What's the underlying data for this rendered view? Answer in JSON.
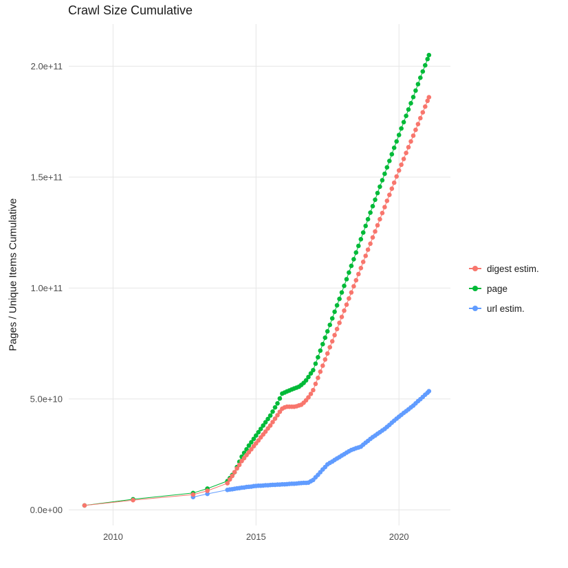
{
  "chart_data": {
    "type": "line",
    "markers": true,
    "title": "Crawl Size Cumulative",
    "xlabel": "",
    "ylabel": "Pages / Unique Items Cumulative",
    "grid": "major-only",
    "grid_color": "#e5e5e5",
    "background": "#ffffff",
    "legend_position": "right",
    "xlim": [
      2008.45,
      2021.8
    ],
    "ylim_raw": [
      -7000000000,
      219000000000
    ],
    "y_scale": 1000000000,
    "y_unit_note": "series point y-values are in billions (1e9) of pages/items",
    "x_ticks": [
      {
        "value": 2010,
        "label": "2010"
      },
      {
        "value": 2015,
        "label": "2015"
      },
      {
        "value": 2020,
        "label": "2020"
      }
    ],
    "y_ticks": [
      {
        "value": 0,
        "label": "0.0e+00"
      },
      {
        "value": 50000000000,
        "label": "5.0e+10"
      },
      {
        "value": 100000000000,
        "label": "1.0e+11"
      },
      {
        "value": 150000000000,
        "label": "1.5e+11"
      },
      {
        "value": 200000000000,
        "label": "2.0e+11"
      }
    ],
    "series": [
      {
        "name": "digest estim.",
        "color": "#F8766D",
        "points": [
          [
            2009.0,
            2.0
          ],
          [
            2010.7,
            4.4
          ],
          [
            2012.8,
            6.9
          ],
          [
            2013.3,
            8.6
          ],
          [
            2014.0,
            12.0
          ],
          [
            2014.083,
            13.7
          ],
          [
            2014.167,
            15.3
          ],
          [
            2014.25,
            17.0
          ],
          [
            2014.333,
            18.7
          ],
          [
            2014.417,
            20.3
          ],
          [
            2014.5,
            22.0
          ],
          [
            2014.583,
            23.3
          ],
          [
            2014.667,
            24.7
          ],
          [
            2014.75,
            26.0
          ],
          [
            2014.833,
            27.3
          ],
          [
            2014.917,
            28.7
          ],
          [
            2015.0,
            30.0
          ],
          [
            2015.083,
            31.3
          ],
          [
            2015.167,
            32.7
          ],
          [
            2015.25,
            34.0
          ],
          [
            2015.333,
            35.3
          ],
          [
            2015.417,
            36.7
          ],
          [
            2015.5,
            38.0
          ],
          [
            2015.583,
            39.6
          ],
          [
            2015.667,
            41.1
          ],
          [
            2015.75,
            42.7
          ],
          [
            2015.833,
            44.2
          ],
          [
            2015.917,
            45.6
          ],
          [
            2016.0,
            46.2
          ],
          [
            2016.083,
            46.5
          ],
          [
            2016.167,
            46.5
          ],
          [
            2016.25,
            46.5
          ],
          [
            2016.333,
            46.5
          ],
          [
            2016.417,
            46.7
          ],
          [
            2016.5,
            47.1
          ],
          [
            2016.583,
            47.4
          ],
          [
            2016.667,
            48.3
          ],
          [
            2016.75,
            49.4
          ],
          [
            2016.833,
            50.7
          ],
          [
            2016.917,
            52.3
          ],
          [
            2017.0,
            54.0
          ],
          [
            2017.083,
            56.8
          ],
          [
            2017.167,
            59.5
          ],
          [
            2017.25,
            62.3
          ],
          [
            2017.333,
            65.0
          ],
          [
            2017.417,
            67.8
          ],
          [
            2017.5,
            70.5
          ],
          [
            2017.583,
            73.3
          ],
          [
            2017.667,
            76.0
          ],
          [
            2017.75,
            78.8
          ],
          [
            2017.833,
            81.5
          ],
          [
            2017.917,
            84.3
          ],
          [
            2018.0,
            87.0
          ],
          [
            2018.083,
            89.8
          ],
          [
            2018.167,
            92.5
          ],
          [
            2018.25,
            95.3
          ],
          [
            2018.333,
            98.0
          ],
          [
            2018.417,
            100.8
          ],
          [
            2018.5,
            103.5
          ],
          [
            2018.583,
            106.3
          ],
          [
            2018.667,
            109.0
          ],
          [
            2018.75,
            111.8
          ],
          [
            2018.833,
            114.5
          ],
          [
            2018.917,
            117.3
          ],
          [
            2019.0,
            120.0
          ],
          [
            2019.083,
            122.8
          ],
          [
            2019.167,
            125.5
          ],
          [
            2019.25,
            128.3
          ],
          [
            2019.333,
            131.0
          ],
          [
            2019.417,
            133.8
          ],
          [
            2019.5,
            136.5
          ],
          [
            2019.583,
            139.3
          ],
          [
            2019.667,
            142.0
          ],
          [
            2019.75,
            144.8
          ],
          [
            2019.833,
            147.5
          ],
          [
            2019.917,
            150.3
          ],
          [
            2020.0,
            153.0
          ],
          [
            2020.083,
            155.6
          ],
          [
            2020.167,
            158.2
          ],
          [
            2020.25,
            160.9
          ],
          [
            2020.333,
            163.5
          ],
          [
            2020.417,
            166.1
          ],
          [
            2020.5,
            168.7
          ],
          [
            2020.583,
            171.3
          ],
          [
            2020.667,
            173.9
          ],
          [
            2020.75,
            176.6
          ],
          [
            2020.833,
            179.2
          ],
          [
            2020.917,
            181.8
          ],
          [
            2021.0,
            184.4
          ],
          [
            2021.05,
            186.0
          ]
        ]
      },
      {
        "name": "page",
        "color": "#00BA38",
        "points": [
          [
            2009.0,
            2.0
          ],
          [
            2010.7,
            4.8
          ],
          [
            2012.8,
            7.6
          ],
          [
            2013.3,
            9.6
          ],
          [
            2014.0,
            13.0
          ],
          [
            2014.083,
            14.3
          ],
          [
            2014.167,
            15.7
          ],
          [
            2014.25,
            17.0
          ],
          [
            2014.333,
            19.3
          ],
          [
            2014.417,
            21.7
          ],
          [
            2014.5,
            24.0
          ],
          [
            2014.583,
            25.7
          ],
          [
            2014.667,
            27.3
          ],
          [
            2014.75,
            29.0
          ],
          [
            2014.833,
            30.5
          ],
          [
            2014.917,
            32.0
          ],
          [
            2015.0,
            33.5
          ],
          [
            2015.083,
            35.0
          ],
          [
            2015.167,
            36.5
          ],
          [
            2015.25,
            38.0
          ],
          [
            2015.333,
            39.5
          ],
          [
            2015.417,
            41.0
          ],
          [
            2015.5,
            42.5
          ],
          [
            2015.583,
            44.3
          ],
          [
            2015.667,
            46.2
          ],
          [
            2015.75,
            48.0
          ],
          [
            2015.833,
            50.2
          ],
          [
            2015.917,
            52.4
          ],
          [
            2016.0,
            52.9
          ],
          [
            2016.083,
            53.4
          ],
          [
            2016.167,
            53.8
          ],
          [
            2016.25,
            54.3
          ],
          [
            2016.333,
            54.7
          ],
          [
            2016.417,
            55.1
          ],
          [
            2016.5,
            55.5
          ],
          [
            2016.583,
            56.3
          ],
          [
            2016.667,
            57.2
          ],
          [
            2016.75,
            58.4
          ],
          [
            2016.833,
            59.9
          ],
          [
            2016.917,
            61.5
          ],
          [
            2017.0,
            63.0
          ],
          [
            2017.083,
            65.9
          ],
          [
            2017.167,
            68.8
          ],
          [
            2017.25,
            71.8
          ],
          [
            2017.333,
            74.7
          ],
          [
            2017.417,
            77.6
          ],
          [
            2017.5,
            80.5
          ],
          [
            2017.583,
            83.4
          ],
          [
            2017.667,
            86.3
          ],
          [
            2017.75,
            89.3
          ],
          [
            2017.833,
            92.2
          ],
          [
            2017.917,
            95.1
          ],
          [
            2018.0,
            98.0
          ],
          [
            2018.083,
            101.0
          ],
          [
            2018.167,
            104.0
          ],
          [
            2018.25,
            107.0
          ],
          [
            2018.333,
            110.0
          ],
          [
            2018.417,
            113.0
          ],
          [
            2018.5,
            116.0
          ],
          [
            2018.583,
            119.0
          ],
          [
            2018.667,
            122.0
          ],
          [
            2018.75,
            125.0
          ],
          [
            2018.833,
            128.0
          ],
          [
            2018.917,
            131.0
          ],
          [
            2019.0,
            134.0
          ],
          [
            2019.083,
            136.9
          ],
          [
            2019.167,
            139.8
          ],
          [
            2019.25,
            142.8
          ],
          [
            2019.333,
            145.7
          ],
          [
            2019.417,
            148.6
          ],
          [
            2019.5,
            151.5
          ],
          [
            2019.583,
            154.4
          ],
          [
            2019.667,
            157.3
          ],
          [
            2019.75,
            160.3
          ],
          [
            2019.833,
            163.2
          ],
          [
            2019.917,
            166.1
          ],
          [
            2020.0,
            169.0
          ],
          [
            2020.083,
            171.9
          ],
          [
            2020.167,
            174.8
          ],
          [
            2020.25,
            177.6
          ],
          [
            2020.333,
            180.5
          ],
          [
            2020.417,
            183.3
          ],
          [
            2020.5,
            186.1
          ],
          [
            2020.583,
            189.0
          ],
          [
            2020.667,
            191.9
          ],
          [
            2020.75,
            194.8
          ],
          [
            2020.833,
            197.6
          ],
          [
            2020.917,
            200.4
          ],
          [
            2021.0,
            203.2
          ],
          [
            2021.05,
            205.0
          ]
        ]
      },
      {
        "name": "url estim.",
        "color": "#619CFF",
        "points": [
          [
            2012.8,
            5.8
          ],
          [
            2013.3,
            7.2
          ],
          [
            2014.0,
            9.0
          ],
          [
            2014.083,
            9.2
          ],
          [
            2014.167,
            9.3
          ],
          [
            2014.25,
            9.5
          ],
          [
            2014.333,
            9.7
          ],
          [
            2014.417,
            9.8
          ],
          [
            2014.5,
            10.0
          ],
          [
            2014.583,
            10.1
          ],
          [
            2014.667,
            10.3
          ],
          [
            2014.75,
            10.4
          ],
          [
            2014.833,
            10.5
          ],
          [
            2014.917,
            10.7
          ],
          [
            2015.0,
            10.8
          ],
          [
            2015.083,
            10.9
          ],
          [
            2015.167,
            10.9
          ],
          [
            2015.25,
            11.0
          ],
          [
            2015.333,
            11.1
          ],
          [
            2015.417,
            11.1
          ],
          [
            2015.5,
            11.2
          ],
          [
            2015.583,
            11.3
          ],
          [
            2015.667,
            11.3
          ],
          [
            2015.75,
            11.4
          ],
          [
            2015.833,
            11.4
          ],
          [
            2015.917,
            11.5
          ],
          [
            2016.0,
            11.5
          ],
          [
            2016.083,
            11.6
          ],
          [
            2016.167,
            11.7
          ],
          [
            2016.25,
            11.8
          ],
          [
            2016.333,
            11.8
          ],
          [
            2016.417,
            11.9
          ],
          [
            2016.5,
            12.0
          ],
          [
            2016.583,
            12.1
          ],
          [
            2016.667,
            12.2
          ],
          [
            2016.75,
            12.2
          ],
          [
            2016.833,
            12.3
          ],
          [
            2016.917,
            12.9
          ],
          [
            2017.0,
            13.5
          ],
          [
            2017.083,
            14.7
          ],
          [
            2017.167,
            15.8
          ],
          [
            2017.25,
            17.0
          ],
          [
            2017.333,
            18.2
          ],
          [
            2017.417,
            19.3
          ],
          [
            2017.5,
            20.5
          ],
          [
            2017.583,
            21.2
          ],
          [
            2017.667,
            21.8
          ],
          [
            2017.75,
            22.5
          ],
          [
            2017.833,
            23.2
          ],
          [
            2017.917,
            23.8
          ],
          [
            2018.0,
            24.5
          ],
          [
            2018.083,
            25.1
          ],
          [
            2018.167,
            25.8
          ],
          [
            2018.25,
            26.4
          ],
          [
            2018.333,
            27.0
          ],
          [
            2018.417,
            27.4
          ],
          [
            2018.5,
            27.8
          ],
          [
            2018.583,
            28.1
          ],
          [
            2018.667,
            28.5
          ],
          [
            2018.75,
            29.4
          ],
          [
            2018.833,
            30.3
          ],
          [
            2018.917,
            31.1
          ],
          [
            2019.0,
            32.0
          ],
          [
            2019.083,
            32.8
          ],
          [
            2019.167,
            33.5
          ],
          [
            2019.25,
            34.3
          ],
          [
            2019.333,
            35.0
          ],
          [
            2019.417,
            35.8
          ],
          [
            2019.5,
            36.5
          ],
          [
            2019.583,
            37.4
          ],
          [
            2019.667,
            38.3
          ],
          [
            2019.75,
            39.3
          ],
          [
            2019.833,
            40.2
          ],
          [
            2019.917,
            41.1
          ],
          [
            2020.0,
            42.0
          ],
          [
            2020.083,
            42.8
          ],
          [
            2020.167,
            43.7
          ],
          [
            2020.25,
            44.5
          ],
          [
            2020.333,
            45.3
          ],
          [
            2020.417,
            46.2
          ],
          [
            2020.5,
            47.0
          ],
          [
            2020.583,
            48.0
          ],
          [
            2020.667,
            49.0
          ],
          [
            2020.75,
            49.9
          ],
          [
            2020.833,
            50.9
          ],
          [
            2020.917,
            51.9
          ],
          [
            2021.0,
            52.8
          ],
          [
            2021.05,
            53.5
          ]
        ]
      }
    ]
  }
}
